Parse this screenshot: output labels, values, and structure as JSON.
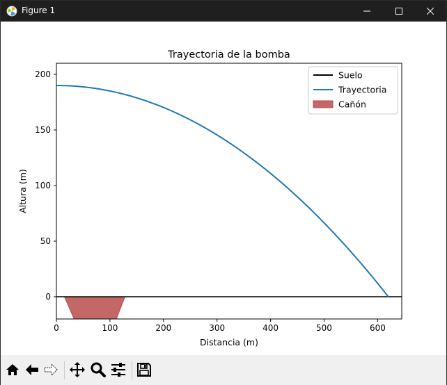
{
  "window": {
    "title": "Figure 1"
  },
  "toolbar": {
    "items": [
      "home",
      "back",
      "forward",
      "pan",
      "zoom",
      "configure-subplots",
      "save"
    ]
  },
  "colors": {
    "titlebar_bg": "#1f1f1f",
    "toolbar_bg": "#f0f0f0",
    "trajectory": "#1f77b4",
    "ground": "#000000",
    "cannon_fill": "#b84c4c"
  },
  "chart_data": {
    "type": "line",
    "title": "Trayectoria de la bomba",
    "xlabel": "Distancia (m)",
    "ylabel": "Altura (m)",
    "xlim": [
      0,
      645
    ],
    "ylim": [
      -20,
      210
    ],
    "xticks": [
      "0",
      "100",
      "200",
      "300",
      "400",
      "500",
      "600"
    ],
    "yticks": [
      "0",
      "50",
      "100",
      "150",
      "200"
    ],
    "legend_position": "top-right",
    "grid": false,
    "series": [
      {
        "name": "Suelo",
        "kind": "line",
        "color": "#000000",
        "x": [
          0,
          645
        ],
        "y": [
          0,
          0
        ]
      },
      {
        "name": "Trayectoria",
        "kind": "line",
        "color": "#1f77b4",
        "x": [
          0,
          100,
          200,
          300,
          400,
          500,
          600,
          620
        ],
        "y": [
          190,
          185,
          170,
          144,
          109,
          63,
          11,
          0
        ]
      },
      {
        "name": "Cañón",
        "kind": "polygon",
        "color": "#b84c4c",
        "x": [
          15,
          128,
          112,
          33
        ],
        "y": [
          0,
          0,
          -20,
          -20
        ]
      }
    ]
  }
}
